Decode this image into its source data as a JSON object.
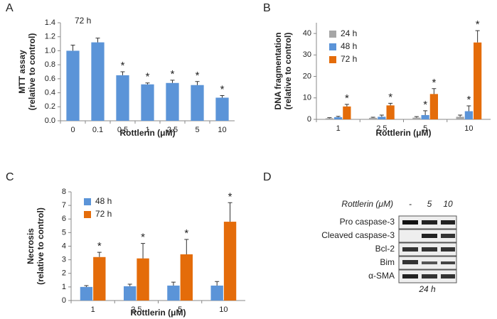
{
  "chart_data": [
    {
      "type": "bar",
      "label": "A",
      "annotation": "72 h",
      "ylabel": [
        "MTT assay",
        "(relative to control)"
      ],
      "xlabel": "Rottlerin (μM)",
      "categories": [
        "0",
        "0.1",
        "0.5",
        "1",
        "2.5",
        "5",
        "10"
      ],
      "series": [
        {
          "color": "#5b94d8",
          "values": [
            1.0,
            1.12,
            0.65,
            0.52,
            0.54,
            0.51,
            0.33
          ],
          "errors": [
            0.08,
            0.06,
            0.05,
            0.02,
            0.04,
            0.05,
            0.03
          ],
          "markers": [
            null,
            null,
            "*",
            "*",
            "*",
            "*",
            "*"
          ]
        }
      ],
      "ylim": [
        0,
        1.4
      ],
      "yticks": [
        {
          "value": 0,
          "label": "0.0"
        },
        0.2,
        0.4,
        0.6,
        0.8,
        {
          "value": 1,
          "label": "1.0"
        },
        1.2,
        1.4
      ]
    },
    {
      "type": "bar",
      "label": "B",
      "ylabel": [
        "DNA fragmentation",
        "(relative to control)"
      ],
      "xlabel": "Rottlerin (μM)",
      "categories": [
        "1",
        "2.5",
        "5",
        "10"
      ],
      "series": [
        {
          "name": "24 h",
          "color": "#a6a6a6",
          "values": [
            0.5,
            0.7,
            0.8,
            1.2
          ],
          "errors": [
            0.3,
            0.3,
            0.5,
            0.8
          ],
          "markers": [
            null,
            null,
            null,
            null
          ]
        },
        {
          "name": "48 h",
          "color": "#5b94d8",
          "values": [
            1.0,
            1.2,
            2.0,
            3.8
          ],
          "errors": [
            0.4,
            0.8,
            2.0,
            2.5
          ],
          "markers": [
            null,
            null,
            "*",
            "*"
          ]
        },
        {
          "name": "72 h",
          "color": "#e46c0a",
          "values": [
            6.0,
            6.5,
            11.8,
            35.8
          ],
          "errors": [
            1.0,
            1.0,
            2.5,
            5.5
          ],
          "markers": [
            "*",
            "*",
            "*",
            "*"
          ]
        }
      ],
      "ylim": [
        0,
        45
      ],
      "yticks": [
        0,
        10,
        20,
        30,
        40
      ]
    },
    {
      "type": "bar",
      "label": "C",
      "ylabel": [
        "Necrosis",
        "(relative to control)"
      ],
      "xlabel": "Rottlerin (μM)",
      "categories": [
        "1",
        "2.5",
        "5",
        "10"
      ],
      "series": [
        {
          "name": "48 h",
          "color": "#5b94d8",
          "values": [
            1.0,
            1.05,
            1.1,
            1.1
          ],
          "errors": [
            0.1,
            0.15,
            0.25,
            0.3
          ],
          "markers": [
            null,
            null,
            null,
            null
          ]
        },
        {
          "name": "72 h",
          "color": "#e46c0a",
          "values": [
            3.2,
            3.1,
            3.4,
            5.8
          ],
          "errors": [
            0.35,
            1.1,
            1.1,
            1.4
          ],
          "markers": [
            "*",
            "*",
            "*",
            "*"
          ]
        }
      ],
      "ylim": [
        0,
        8
      ],
      "yticks": [
        0,
        1,
        2,
        3,
        4,
        5,
        6,
        7,
        8
      ]
    }
  ],
  "blot": {
    "label": "D",
    "treatment": "Rottlerin (μM)",
    "lanes": [
      "-",
      "5",
      "10"
    ],
    "rows": [
      "Pro caspase-3",
      "Cleaved caspase-3",
      "Bcl-2",
      "Bim",
      "α-SMA"
    ],
    "time": "24 h"
  }
}
